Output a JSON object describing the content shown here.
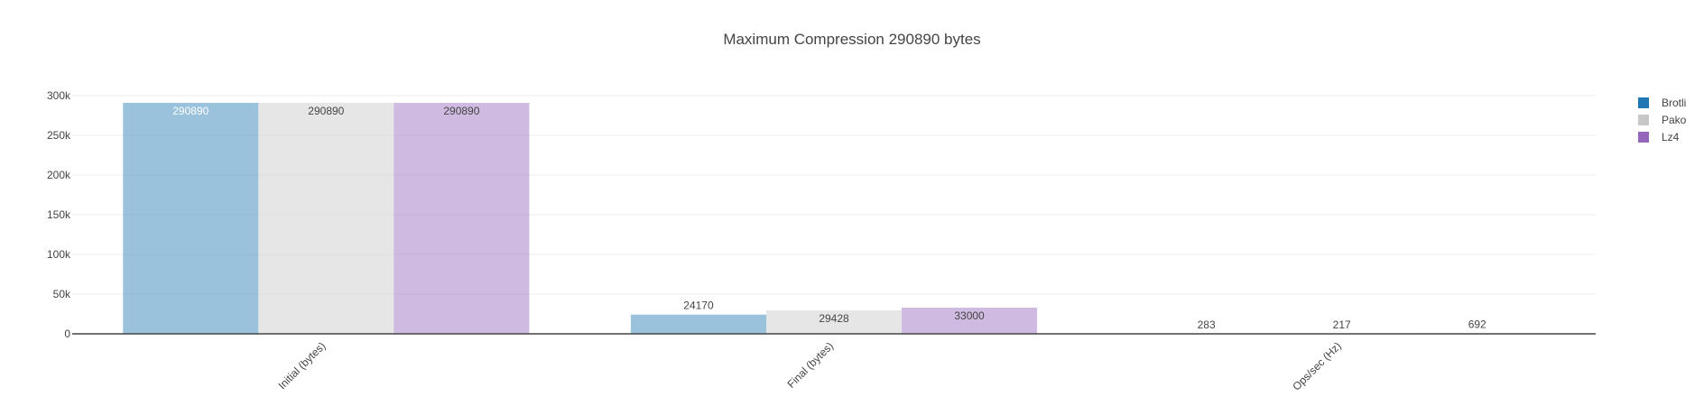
{
  "chart_data": {
    "type": "bar",
    "title": "Maximum Compression 290890 bytes",
    "categories": [
      "Initial (bytes)",
      "Final (bytes)",
      "Ops/sec (Hz)"
    ],
    "series": [
      {
        "name": "Brotli",
        "values": [
          290890,
          24170,
          283
        ],
        "color": "#1f77b4"
      },
      {
        "name": "Pako",
        "values": [
          290890,
          29428,
          217
        ],
        "color": "#c7c7c7"
      },
      {
        "name": "Lz4",
        "values": [
          290890,
          33000,
          692
        ],
        "color": "#9467bd"
      }
    ],
    "ylim": [
      0,
      300000
    ],
    "yticks": [
      0,
      50000,
      100000,
      150000,
      200000,
      250000,
      300000
    ],
    "ytick_labels": [
      "0",
      "50k",
      "100k",
      "150k",
      "200k",
      "250k",
      "300k"
    ],
    "xlabel": "",
    "ylabel": "",
    "grid": true,
    "legend_position": "top-right"
  }
}
